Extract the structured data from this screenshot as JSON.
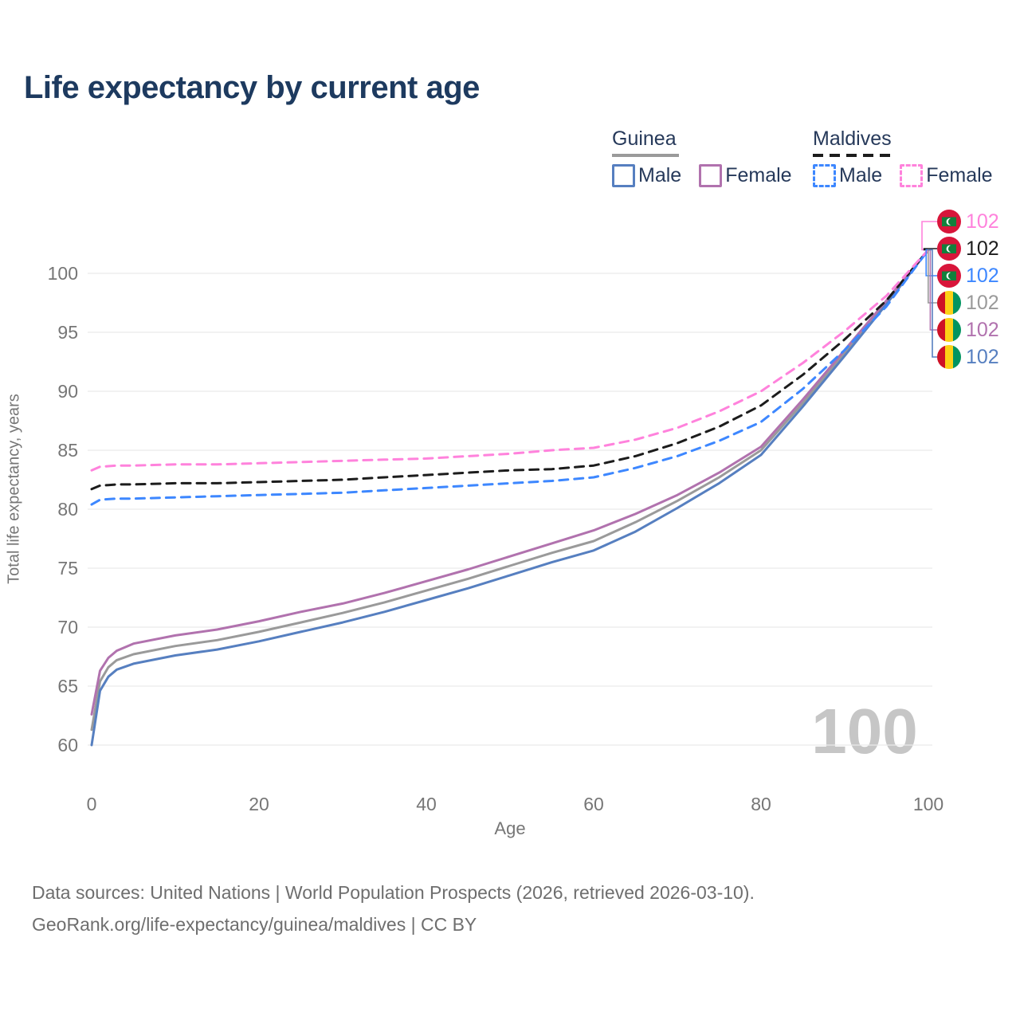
{
  "title": "Life expectancy by current age",
  "legend": {
    "groups": [
      {
        "name": "Guinea",
        "style": "solid",
        "underline_color": "#9a9a9a",
        "items": [
          {
            "label": "Male",
            "color": "#567fc0"
          },
          {
            "label": "Female",
            "color": "#b172ae"
          }
        ]
      },
      {
        "name": "Maldives",
        "style": "dashed",
        "underline_color": "#1c1c1c",
        "items": [
          {
            "label": "Male",
            "color": "#3d87ff"
          },
          {
            "label": "Female",
            "color": "#ff82dc"
          }
        ]
      }
    ]
  },
  "chart_data": {
    "type": "line",
    "title": "Life expectancy by current age",
    "xlabel": "Age",
    "ylabel": "Total life expectancy, years",
    "xlim": [
      0,
      100
    ],
    "ylim": [
      59,
      103
    ],
    "x_ticks": [
      0,
      20,
      40,
      60,
      80,
      100
    ],
    "y_ticks": [
      60,
      65,
      70,
      75,
      80,
      85,
      90,
      95,
      100
    ],
    "grid": "horizontal",
    "legend_position": "top-right",
    "x": [
      0,
      1,
      2,
      3,
      5,
      10,
      15,
      20,
      25,
      30,
      35,
      40,
      45,
      50,
      55,
      60,
      65,
      70,
      75,
      80,
      85,
      90,
      95,
      100
    ],
    "series": [
      {
        "name": "Guinea",
        "sex": "both",
        "color": "#9a9a9a",
        "dash": false,
        "values": [
          61.3,
          65.4,
          66.6,
          67.2,
          67.7,
          68.4,
          68.9,
          69.6,
          70.4,
          71.2,
          72.1,
          73.1,
          74.1,
          75.2,
          76.3,
          77.3,
          78.9,
          80.7,
          82.7,
          85.0,
          89.0,
          93.3,
          97.6,
          102
        ]
      },
      {
        "name": "Guinea Male",
        "sex": "male",
        "color": "#567fc0",
        "dash": false,
        "values": [
          60.0,
          64.6,
          65.8,
          66.4,
          66.9,
          67.6,
          68.1,
          68.8,
          69.6,
          70.4,
          71.3,
          72.3,
          73.3,
          74.4,
          75.5,
          76.5,
          78.1,
          80.1,
          82.2,
          84.6,
          88.7,
          93.0,
          97.4,
          102
        ]
      },
      {
        "name": "Guinea Female",
        "sex": "female",
        "color": "#b172ae",
        "dash": false,
        "values": [
          62.6,
          66.3,
          67.4,
          68.0,
          68.6,
          69.3,
          69.8,
          70.5,
          71.3,
          72.0,
          72.9,
          73.9,
          74.9,
          76.0,
          77.1,
          78.2,
          79.6,
          81.2,
          83.1,
          85.3,
          89.3,
          93.5,
          97.7,
          102
        ]
      },
      {
        "name": "Maldives",
        "sex": "both",
        "color": "#1c1c1c",
        "dash": true,
        "values": [
          81.7,
          82.0,
          82.05,
          82.1,
          82.1,
          82.2,
          82.2,
          82.3,
          82.4,
          82.5,
          82.7,
          82.9,
          83.1,
          83.3,
          83.4,
          83.7,
          84.5,
          85.6,
          87.0,
          88.8,
          91.4,
          94.4,
          97.7,
          102
        ]
      },
      {
        "name": "Maldives Male",
        "sex": "male",
        "color": "#3d87ff",
        "dash": true,
        "values": [
          80.4,
          80.8,
          80.85,
          80.9,
          80.9,
          81.0,
          81.1,
          81.2,
          81.3,
          81.4,
          81.6,
          81.8,
          82.0,
          82.2,
          82.4,
          82.7,
          83.5,
          84.5,
          85.8,
          87.4,
          90.2,
          93.5,
          97.2,
          102
        ]
      },
      {
        "name": "Maldives Female",
        "sex": "female",
        "color": "#ff82dc",
        "dash": true,
        "values": [
          83.3,
          83.6,
          83.65,
          83.7,
          83.7,
          83.8,
          83.8,
          83.9,
          84.0,
          84.1,
          84.2,
          84.3,
          84.5,
          84.7,
          85.0,
          85.2,
          85.9,
          86.9,
          88.3,
          90.0,
          92.4,
          95.1,
          98.1,
          102
        ]
      }
    ]
  },
  "end_labels": [
    {
      "series": "Maldives Female",
      "flag": "maldives",
      "value": "102",
      "color": "#ff82dc"
    },
    {
      "series": "Maldives",
      "flag": "maldives",
      "value": "102",
      "color": "#1c1c1c"
    },
    {
      "series": "Maldives Male",
      "flag": "maldives",
      "value": "102",
      "color": "#3d87ff"
    },
    {
      "series": "Guinea",
      "flag": "guinea",
      "value": "102",
      "color": "#9a9a9a"
    },
    {
      "series": "Guinea Female",
      "flag": "guinea",
      "value": "102",
      "color": "#b172ae"
    },
    {
      "series": "Guinea Male",
      "flag": "guinea",
      "value": "102",
      "color": "#567fc0"
    }
  ],
  "watermark": "100",
  "footer": {
    "line1": "Data sources: United Nations | World Population Prospects (2026, retrieved 2026-03-10).",
    "line2": "GeoRank.org/life-expectancy/guinea/maldives | CC BY"
  }
}
